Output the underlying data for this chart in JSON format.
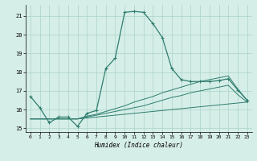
{
  "title": "",
  "xlabel": "Humidex (Indice chaleur)",
  "background_color": "#d6eee8",
  "line_color": "#2e7d6e",
  "grid_color": "#aad4c8",
  "xlim": [
    -0.5,
    23.5
  ],
  "ylim": [
    14.8,
    21.6
  ],
  "xticks": [
    0,
    1,
    2,
    3,
    4,
    5,
    6,
    7,
    8,
    9,
    10,
    11,
    12,
    13,
    14,
    15,
    16,
    17,
    18,
    19,
    20,
    21,
    22,
    23
  ],
  "yticks": [
    15,
    16,
    17,
    18,
    19,
    20,
    21
  ],
  "curve_main": {
    "x": [
      0,
      1,
      2,
      3,
      4,
      5,
      6,
      7,
      8,
      9,
      10,
      11,
      12,
      13,
      14,
      15,
      16,
      17,
      18,
      19,
      20,
      21,
      22,
      23
    ],
    "y": [
      16.7,
      16.1,
      15.3,
      15.6,
      15.6,
      15.1,
      15.8,
      15.95,
      18.2,
      18.75,
      21.2,
      21.25,
      21.2,
      20.6,
      19.85,
      18.2,
      17.6,
      17.5,
      17.5,
      17.5,
      17.55,
      17.65,
      17.05,
      16.5
    ]
  },
  "curve_flat1": {
    "x": [
      0,
      1,
      2,
      3,
      4,
      5,
      6,
      7,
      8,
      9,
      10,
      11,
      12,
      13,
      14,
      15,
      16,
      17,
      18,
      19,
      20,
      21,
      22,
      23
    ],
    "y": [
      15.5,
      15.5,
      15.5,
      15.5,
      15.5,
      15.5,
      15.55,
      15.6,
      15.65,
      15.7,
      15.75,
      15.8,
      15.85,
      15.9,
      15.95,
      16.0,
      16.05,
      16.1,
      16.15,
      16.2,
      16.25,
      16.3,
      16.35,
      16.4
    ]
  },
  "curve_flat2": {
    "x": [
      0,
      1,
      2,
      3,
      4,
      5,
      6,
      7,
      8,
      9,
      10,
      11,
      12,
      13,
      14,
      15,
      16,
      17,
      18,
      19,
      20,
      21,
      22,
      23
    ],
    "y": [
      15.5,
      15.5,
      15.5,
      15.5,
      15.5,
      15.5,
      15.6,
      15.7,
      15.8,
      15.9,
      16.0,
      16.1,
      16.2,
      16.35,
      16.5,
      16.65,
      16.75,
      16.9,
      17.0,
      17.1,
      17.2,
      17.3,
      16.8,
      16.4
    ]
  },
  "curve_flat3": {
    "x": [
      0,
      1,
      2,
      3,
      4,
      5,
      6,
      7,
      8,
      9,
      10,
      11,
      12,
      13,
      14,
      15,
      16,
      17,
      18,
      19,
      20,
      21,
      22,
      23
    ],
    "y": [
      15.5,
      15.5,
      15.5,
      15.5,
      15.5,
      15.5,
      15.65,
      15.75,
      15.9,
      16.05,
      16.2,
      16.4,
      16.55,
      16.7,
      16.9,
      17.05,
      17.2,
      17.35,
      17.5,
      17.6,
      17.7,
      17.8,
      17.1,
      16.5
    ]
  }
}
